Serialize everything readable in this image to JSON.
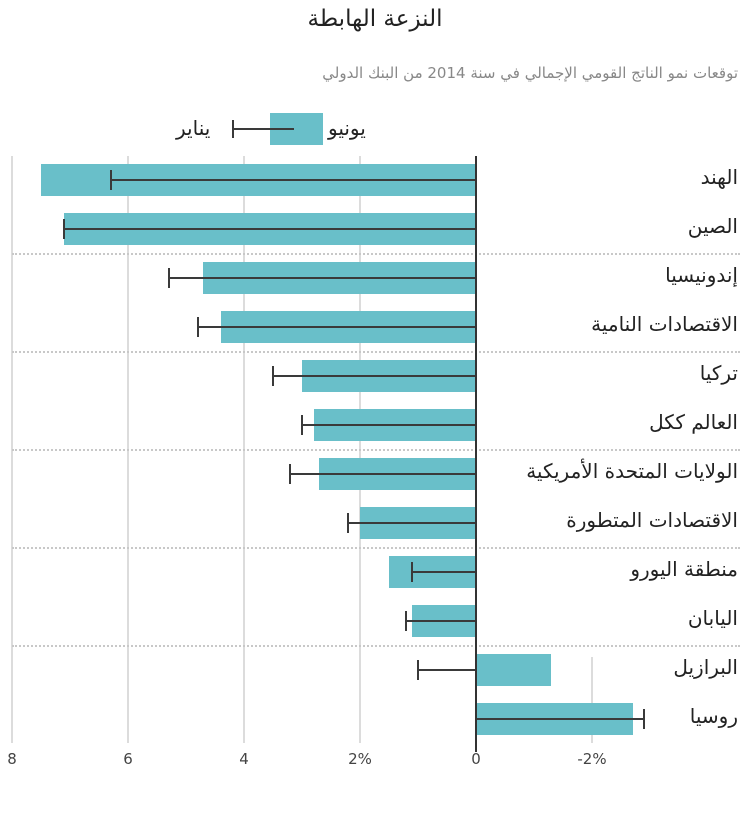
{
  "header": {
    "title": "النزعة الهابطة",
    "subtitle": "توقعات نمو الناتج القومي الإجمالي في سنة 2014 من البنك الدولي"
  },
  "legend": {
    "june_label": "يونيو",
    "january_label": "يناير"
  },
  "colors": {
    "bar": "#69bfc9",
    "whisker": "#3a3a3a",
    "grid": "#dcdcdc",
    "zero_line": "#333333"
  },
  "axis": {
    "ticks": [
      {
        "label": "8",
        "value": 8
      },
      {
        "label": "6",
        "value": 6
      },
      {
        "label": "4",
        "value": 4
      },
      {
        "label": "2%",
        "value": 2
      },
      {
        "label": "0",
        "value": 0
      },
      {
        "label": "-2%",
        "value": -2
      }
    ]
  },
  "chart_data": {
    "type": "bar",
    "orientation": "horizontal",
    "title": "النزعة الهابطة",
    "subtitle": "توقعات نمو الناتج القومي الإجمالي في سنة 2014 من البنك الدولي",
    "xlabel": "",
    "ylabel": "",
    "xlim": [
      8,
      -2.6
    ],
    "x_direction": "reversed (positive values extend left)",
    "grid": true,
    "legend_position": "top",
    "categories": [
      "الهند",
      "الصين",
      "إندونيسيا",
      "الاقتصادات النامية",
      "تركيا",
      "العالم ككل",
      "الولايات المتحدة الأمريكية",
      "الاقتصادات المتطورة",
      "منطقة اليورو",
      "اليابان",
      "البرازيل",
      "روسيا"
    ],
    "series": [
      {
        "name": "يونيو",
        "style": "bar",
        "values": [
          7.5,
          7.1,
          4.7,
          4.4,
          3.0,
          2.8,
          2.7,
          2.0,
          1.5,
          1.1,
          -1.3,
          -2.7
        ]
      },
      {
        "name": "يناير",
        "style": "error-whisker",
        "values": [
          6.3,
          7.1,
          5.3,
          4.8,
          3.5,
          3.0,
          3.2,
          2.2,
          1.1,
          1.2,
          1.0,
          -2.9
        ]
      }
    ]
  }
}
